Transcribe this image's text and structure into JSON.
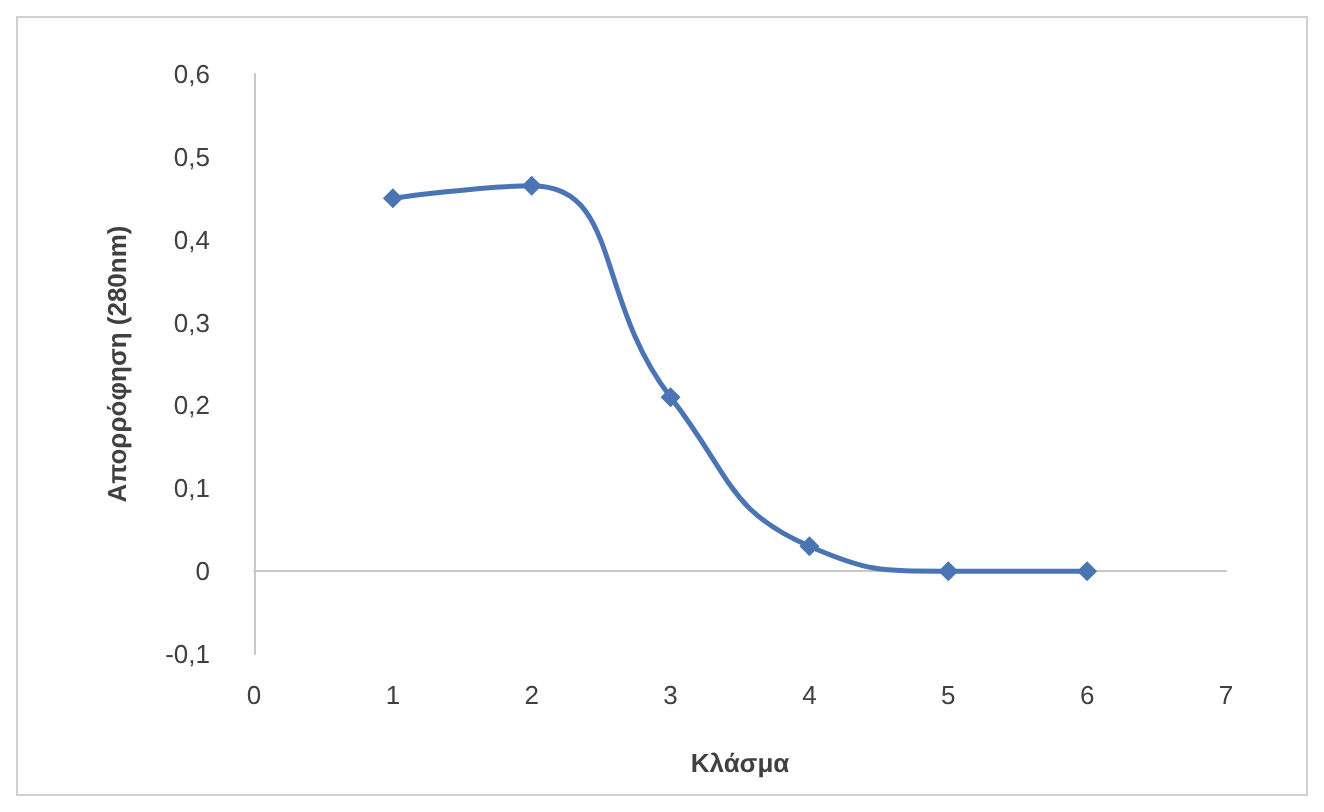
{
  "chart_data": {
    "type": "line",
    "xlabel": "Κλάσμα",
    "ylabel": "Απορρόφηση (280nm)",
    "x": [
      1,
      2,
      3,
      4,
      5,
      6
    ],
    "series": [
      {
        "color": "#4a74b4",
        "values": [
          0.45,
          0.465,
          0.21,
          0.03,
          0,
          0
        ]
      }
    ],
    "xlim": [
      0,
      7
    ],
    "xticks": [
      0,
      1,
      2,
      3,
      4,
      5,
      6,
      7
    ],
    "ylim": [
      -0.1,
      0.6
    ],
    "yticks": [
      {
        "value": -0.1,
        "label": "-0,1"
      },
      {
        "value": 0,
        "label": "0"
      },
      {
        "value": 0.1,
        "label": "0,1"
      },
      {
        "value": 0.2,
        "label": "0,2"
      },
      {
        "value": 0.3,
        "label": "0,3"
      },
      {
        "value": 0.4,
        "label": "0,4"
      },
      {
        "value": 0.5,
        "label": "0,5"
      },
      {
        "value": 0.6,
        "label": "0,6"
      }
    ],
    "marker": "diamond",
    "line_style": "solid"
  }
}
